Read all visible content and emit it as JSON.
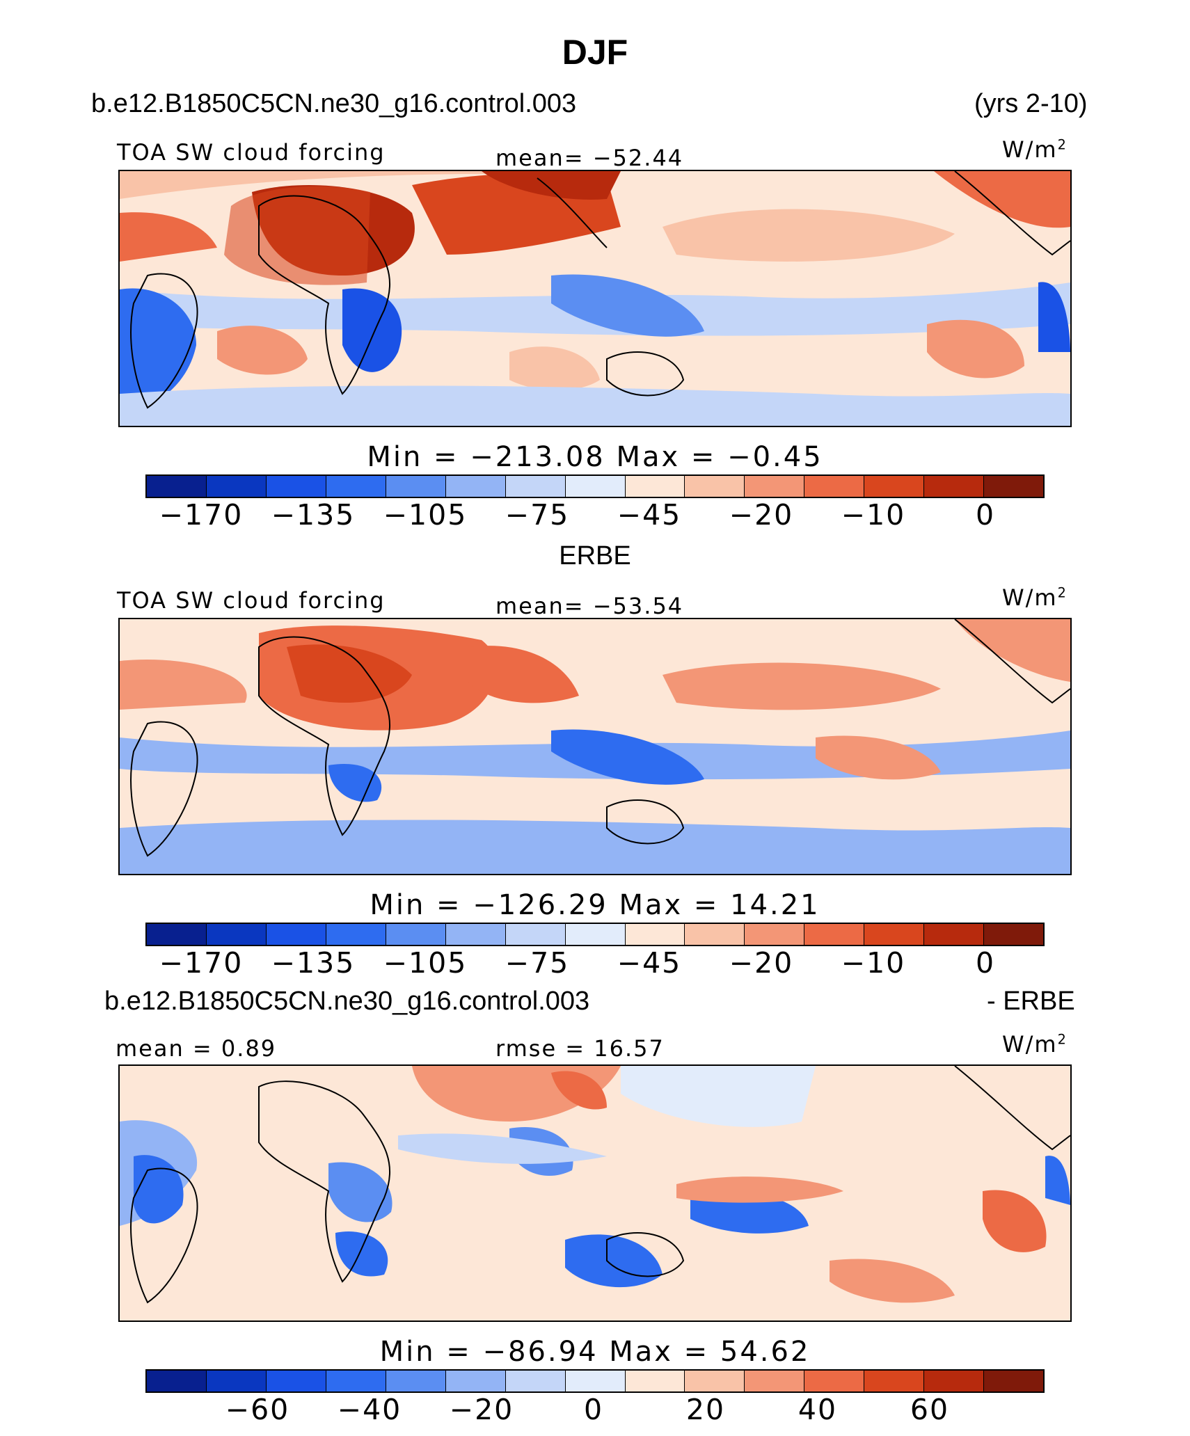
{
  "title": "DJF",
  "panel1": {
    "case": "b.e12.B1850C5CN.ne30_g16.control.003",
    "years": "(yrs 2-10)",
    "variable": "TOA SW cloud forcing",
    "mean": "mean=  −52.44",
    "units": "W/m",
    "units_exp": "2",
    "minmax": "Min  =  −213.08  Max  =   −0.45",
    "ticks": [
      "−170",
      "−135",
      "−105",
      "−75",
      "−45",
      "−20",
      "−10",
      "0"
    ]
  },
  "panel2": {
    "obs": "ERBE",
    "variable": "TOA SW cloud forcing",
    "mean": "mean=  −53.54",
    "units": "W/m",
    "units_exp": "2",
    "minmax": "Min  =  −126.29  Max  =   14.21",
    "ticks": [
      "−170",
      "−135",
      "−105",
      "−75",
      "−45",
      "−20",
      "−10",
      "0"
    ]
  },
  "panel3": {
    "case": "b.e12.B1850C5CN.ne30_g16.control.003",
    "diff": "- ERBE",
    "mean": "mean  =    0.89",
    "rmse": "rmse  =   16.57",
    "units": "W/m",
    "units_exp": "2",
    "minmax": "Min  =  −86.94  Max  =   54.62",
    "ticks": [
      "−60",
      "−40",
      "−20",
      "0",
      "20",
      "40",
      "60"
    ]
  },
  "colors": {
    "abs_scale": [
      "#08208f",
      "#0a37c0",
      "#1a52e6",
      "#2e6cf0",
      "#5b8ef2",
      "#93b4f5",
      "#c4d6f8",
      "#e2ecfb",
      "#fde7d7",
      "#f9c3a8",
      "#f39676",
      "#ec6a45",
      "#d9461e",
      "#b72a0d",
      "#7f1a0a"
    ],
    "diff_scale": [
      "#08208f",
      "#0a37c0",
      "#1a52e6",
      "#2e6cf0",
      "#5b8ef2",
      "#93b4f5",
      "#c4d6f8",
      "#e2ecfb",
      "#fde7d7",
      "#f9c3a8",
      "#f39676",
      "#ec6a45",
      "#d9461e",
      "#b72a0d",
      "#7f1a0a"
    ]
  }
}
